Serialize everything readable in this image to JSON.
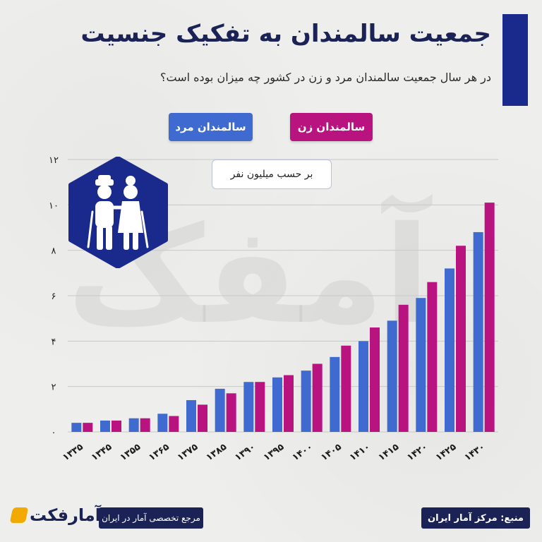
{
  "header": {
    "title": "جمعیت سالمندان به تفکیک جنسیت",
    "subtitle": "در هر سال جمعیت سالمندان مرد و زن در کشور چه میزان بوده است؟"
  },
  "unit_note": "بر حسب میلیون نفر",
  "watermark": "آمفک",
  "colors": {
    "female": "#b8137f",
    "male": "#3f6bd0",
    "navy": "#1b2356",
    "brand_orange": "#f2a900"
  },
  "footer": {
    "brand_name": "آمارفکت",
    "brand_tagline": "مرجع تخصصی آمار در ایران",
    "source": "منبع: مرکز آمار ایران"
  },
  "chart_data": {
    "type": "bar",
    "categories": [
      "۱۳۳۵",
      "۱۳۴۵",
      "۱۳۵۵",
      "۱۳۶۵",
      "۱۳۷۵",
      "۱۳۸۵",
      "۱۳۹۰",
      "۱۳۹۵",
      "۱۴۰۰",
      "۱۴۰۵",
      "۱۴۱۰",
      "۱۴۱۵",
      "۱۴۲۰",
      "۱۴۲۵",
      "۱۴۳۰"
    ],
    "series": [
      {
        "name": "سالمندان مرد",
        "color": "#3f6bd0",
        "values": [
          0.4,
          0.5,
          0.6,
          0.8,
          1.4,
          1.9,
          2.2,
          2.4,
          2.7,
          3.3,
          4.0,
          4.9,
          5.9,
          7.2,
          8.8
        ]
      },
      {
        "name": "سالمندان زن",
        "color": "#b8137f",
        "values": [
          0.4,
          0.5,
          0.6,
          0.7,
          1.2,
          1.7,
          2.2,
          2.5,
          3.0,
          3.8,
          4.6,
          5.6,
          6.6,
          8.2,
          10.1
        ]
      }
    ],
    "yticks": [
      "۰",
      "۲",
      "۴",
      "۶",
      "۸",
      "۱۰",
      "۱۲"
    ],
    "ylim": [
      0,
      12
    ],
    "grid": true,
    "legend": "top"
  }
}
